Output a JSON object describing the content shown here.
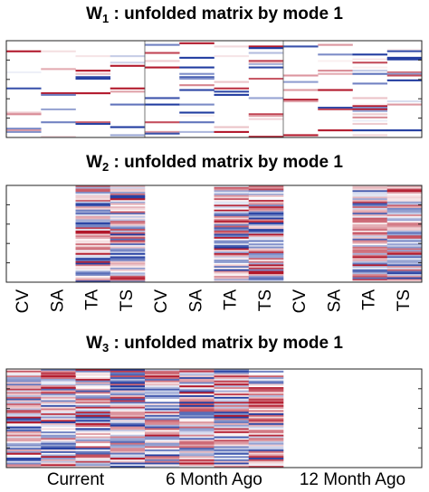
{
  "chart_data": [
    {
      "type": "heatmap",
      "title": {
        "symbol": "W",
        "subscript": "1",
        "text": " : unfolded matrix by mode 1"
      }
    },
    {
      "type": "heatmap",
      "title": {
        "symbol": "W",
        "subscript": "2",
        "text": " : unfolded matrix by mode 1"
      },
      "categories": [
        "CV",
        "SA",
        "TA",
        "TS",
        "CV",
        "SA",
        "TA",
        "TS",
        "CV",
        "SA",
        "TA",
        "TS"
      ]
    },
    {
      "type": "heatmap",
      "title": {
        "symbol": "W",
        "subscript": "3",
        "text": " : unfolded matrix by mode 1"
      },
      "categories": [
        "Current",
        "6 Month Ago",
        "12 Month Ago"
      ]
    }
  ]
}
